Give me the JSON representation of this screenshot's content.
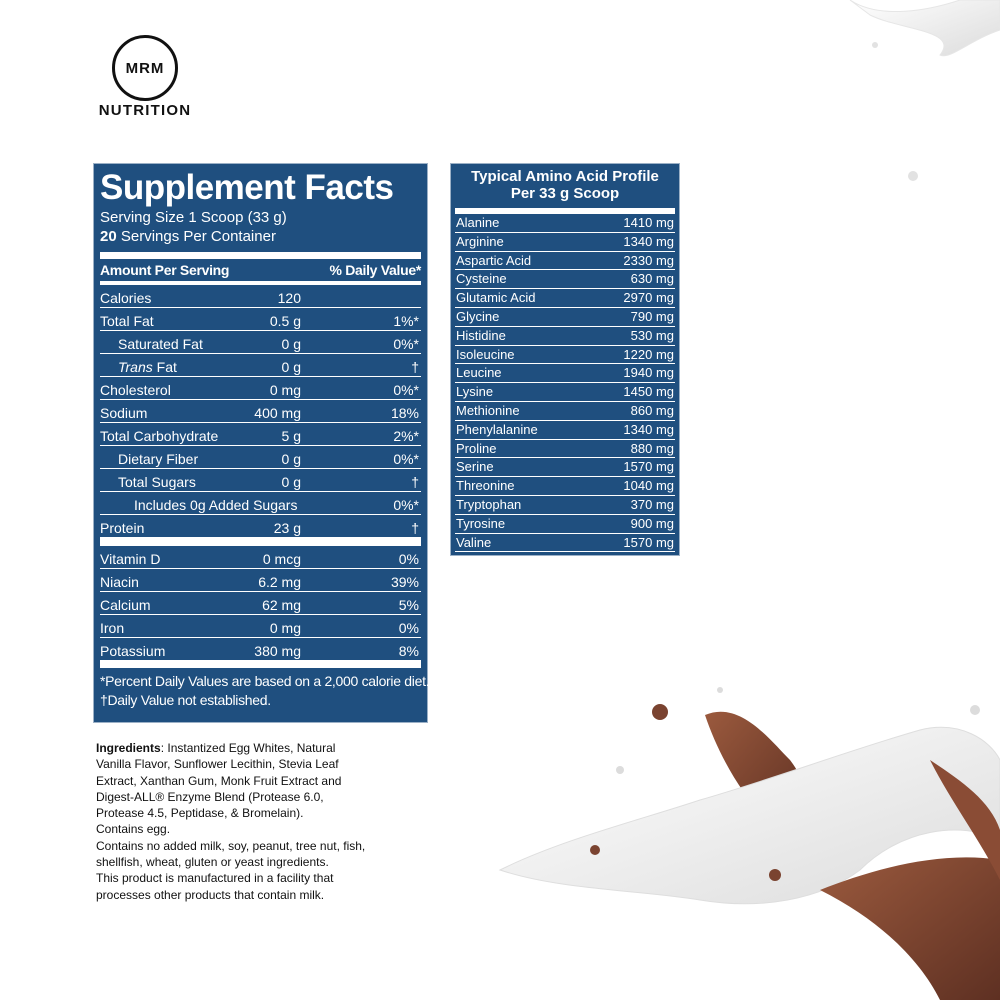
{
  "logo": {
    "mark": "MRM",
    "name": "NUTRITION"
  },
  "supplement_facts": {
    "title": "Supplement Facts",
    "serving_size": "Serving Size 1 Scoop (33 g)",
    "servings_count": "20",
    "servings_text": "Servings Per Container",
    "header": {
      "amount": "Amount Per Serving",
      "dv": "% Daily Value*"
    },
    "rows": [
      {
        "name": "Calories",
        "amount": "120"
      },
      {
        "name": "Total Fat",
        "amount": "0.5 g",
        "dv": "1%*"
      },
      {
        "name": "Saturated Fat",
        "amount": "0 g",
        "dv": "0%*"
      },
      {
        "name_italic": "Trans",
        "name": "Fat",
        "amount": "0 g",
        "dv": "†"
      },
      {
        "name": "Cholesterol",
        "amount": "0 mg",
        "dv": "0%*"
      },
      {
        "name": "Sodium",
        "amount": "400 mg",
        "dv": "18%"
      },
      {
        "name": "Total Carbohydrate",
        "amount": "5 g",
        "dv": "2%*"
      },
      {
        "name": "Dietary Fiber",
        "amount": "0 g",
        "dv": "0%*"
      },
      {
        "name": "Total Sugars",
        "amount": "0 g",
        "dv": "†"
      },
      {
        "name": "Includes 0g Added Sugars",
        "dv": "0%*"
      },
      {
        "name": "Protein",
        "amount": "23 g",
        "dv": "†"
      }
    ],
    "vitamins": [
      {
        "name": "Vitamin D",
        "amount": "0 mcg",
        "dv": "0%"
      },
      {
        "name": "Niacin",
        "amount": "6.2 mg",
        "dv": "39%"
      },
      {
        "name": "Calcium",
        "amount": "62 mg",
        "dv": "5%"
      },
      {
        "name": "Iron",
        "amount": "0 mg",
        "dv": "0%"
      },
      {
        "name": "Potassium",
        "amount": "380 mg",
        "dv": "8%"
      }
    ],
    "footnotes": [
      "*Percent Daily Values are based on a 2,000 calorie diet.",
      "†Daily Value not established."
    ]
  },
  "amino_profile": {
    "title": "Typical Amino Acid Profile",
    "subtitle": "Per 33 g Scoop",
    "rows": [
      {
        "name": "Alanine",
        "amount": "1410 mg"
      },
      {
        "name": "Arginine",
        "amount": "1340 mg"
      },
      {
        "name": "Aspartic Acid",
        "amount": "2330 mg"
      },
      {
        "name": "Cysteine",
        "amount": "630 mg"
      },
      {
        "name": "Glutamic Acid",
        "amount": "2970 mg"
      },
      {
        "name": "Glycine",
        "amount": "790 mg"
      },
      {
        "name": "Histidine",
        "amount": "530 mg"
      },
      {
        "name": "Isoleucine",
        "amount": "1220 mg"
      },
      {
        "name": "Leucine",
        "amount": "1940 mg"
      },
      {
        "name": "Lysine",
        "amount": "1450 mg"
      },
      {
        "name": "Methionine",
        "amount": "860 mg"
      },
      {
        "name": "Phenylalanine",
        "amount": "1340 mg"
      },
      {
        "name": "Proline",
        "amount": "880 mg"
      },
      {
        "name": "Serine",
        "amount": "1570 mg"
      },
      {
        "name": "Threonine",
        "amount": "1040 mg"
      },
      {
        "name": "Tryptophan",
        "amount": "370 mg"
      },
      {
        "name": "Tyrosine",
        "amount": "900 mg"
      },
      {
        "name": "Valine",
        "amount": "1570 mg"
      }
    ]
  },
  "ingredients": {
    "label": "Ingredients",
    "text": ": Instantized Egg Whites, Natural Vanilla Flavor, Sunflower Lecithin, Stevia Leaf Extract, Xanthan Gum, Monk Fruit Extract and Digest-ALL® Enzyme Blend (Protease 6.0, Protease 4.5, Peptidase, & Bromelain).",
    "notes": [
      "Contains egg.",
      "Contains no added milk, soy, peanut, tree nut, fish, shellfish, wheat, gluten or yeast ingredients.",
      "This product is manufactured in a facility that processes other products that contain milk."
    ]
  }
}
